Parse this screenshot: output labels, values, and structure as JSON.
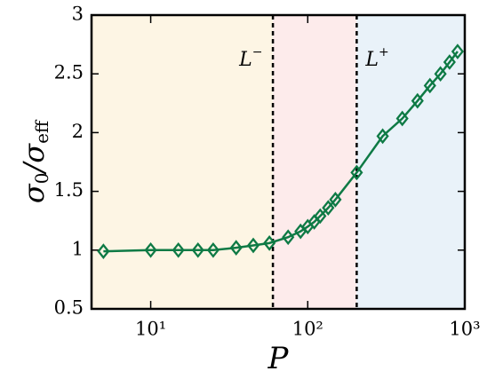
{
  "chart_data": {
    "type": "line",
    "x": [
      5,
      10,
      15,
      20,
      25,
      35,
      45,
      57,
      75,
      90,
      100,
      110,
      120,
      135,
      150,
      205,
      300,
      400,
      500,
      600,
      700,
      800,
      900
    ],
    "series": [
      {
        "color": "#0e7a45",
        "values": [
          0.99,
          1.0,
          1.0,
          1.0,
          1.0,
          1.02,
          1.04,
          1.06,
          1.11,
          1.16,
          1.2,
          1.24,
          1.29,
          1.36,
          1.43,
          1.66,
          1.97,
          2.12,
          2.27,
          2.4,
          2.5,
          2.6,
          2.69
        ]
      }
    ],
    "xlog": true,
    "xlim": [
      4.2,
      1000
    ],
    "ylim": [
      0.5,
      3
    ],
    "xticks": [
      {
        "value": 10,
        "label": "10¹"
      },
      {
        "value": 100,
        "label": "10²"
      },
      {
        "value": 1000,
        "label": "10³"
      }
    ],
    "yticks": [
      0.5,
      1,
      1.5,
      2,
      2.5,
      3
    ],
    "xlabel": "P",
    "ylabel": [
      "σ",
      "0",
      "/σ",
      "eff"
    ],
    "vlines": [
      {
        "value": 60,
        "label": [
          "L",
          "−"
        ]
      },
      {
        "value": 205,
        "label": [
          "L",
          "+"
        ]
      }
    ],
    "region_colors": [
      "#fdf5e4",
      "#fdebeb",
      "#e9f2f9"
    ]
  }
}
